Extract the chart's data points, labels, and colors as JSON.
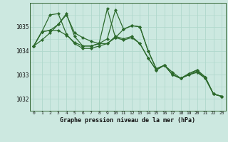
{
  "background_color": "#cce8e0",
  "grid_color": "#b0d8cc",
  "line_color": "#2d6a2d",
  "marker_color": "#2d6a2d",
  "title": "Graphe pression niveau de la mer (hPa)",
  "xlim": [
    -0.5,
    23.5
  ],
  "ylim": [
    1031.5,
    1036.0
  ],
  "yticks": [
    1032,
    1033,
    1034,
    1035
  ],
  "xticks": [
    0,
    1,
    2,
    3,
    4,
    5,
    6,
    7,
    8,
    9,
    10,
    11,
    12,
    13,
    14,
    15,
    16,
    17,
    18,
    19,
    20,
    21,
    22,
    23
  ],
  "series": [
    [
      1034.2,
      1034.45,
      1034.75,
      1035.1,
      1035.5,
      1034.75,
      1034.55,
      1034.4,
      1034.3,
      1034.5,
      1035.7,
      1034.9,
      1035.05,
      1035.0,
      1034.0,
      1033.25,
      1033.4,
      1033.1,
      1032.85,
      1033.05,
      1033.2,
      1032.9,
      1032.2,
      1032.1
    ],
    [
      1034.2,
      1034.8,
      1035.5,
      1035.55,
      1034.7,
      1034.3,
      1034.1,
      1034.1,
      1034.2,
      1034.3,
      1034.6,
      1034.5,
      1034.6,
      1034.3,
      1033.7,
      1033.2,
      1033.4,
      1033.0,
      1032.85,
      1033.0,
      1033.15,
      1032.85,
      1032.2,
      1032.1
    ],
    [
      1034.2,
      1034.8,
      1034.85,
      1034.85,
      1034.65,
      1034.35,
      1034.2,
      1034.2,
      1034.3,
      1034.3,
      1034.55,
      1034.45,
      1034.55,
      1034.3,
      1033.7,
      1033.2,
      1033.4,
      1033.0,
      1032.85,
      1033.0,
      1033.1,
      1032.85,
      1032.2,
      1032.1
    ],
    [
      1034.2,
      1034.8,
      1034.85,
      1035.1,
      1035.55,
      1034.6,
      1034.2,
      1034.2,
      1034.3,
      1035.75,
      1034.55,
      1034.9,
      1035.05,
      1035.0,
      1034.0,
      1033.25,
      1033.4,
      1033.0,
      1032.85,
      1033.05,
      1033.2,
      1032.9,
      1032.2,
      1032.1
    ]
  ]
}
